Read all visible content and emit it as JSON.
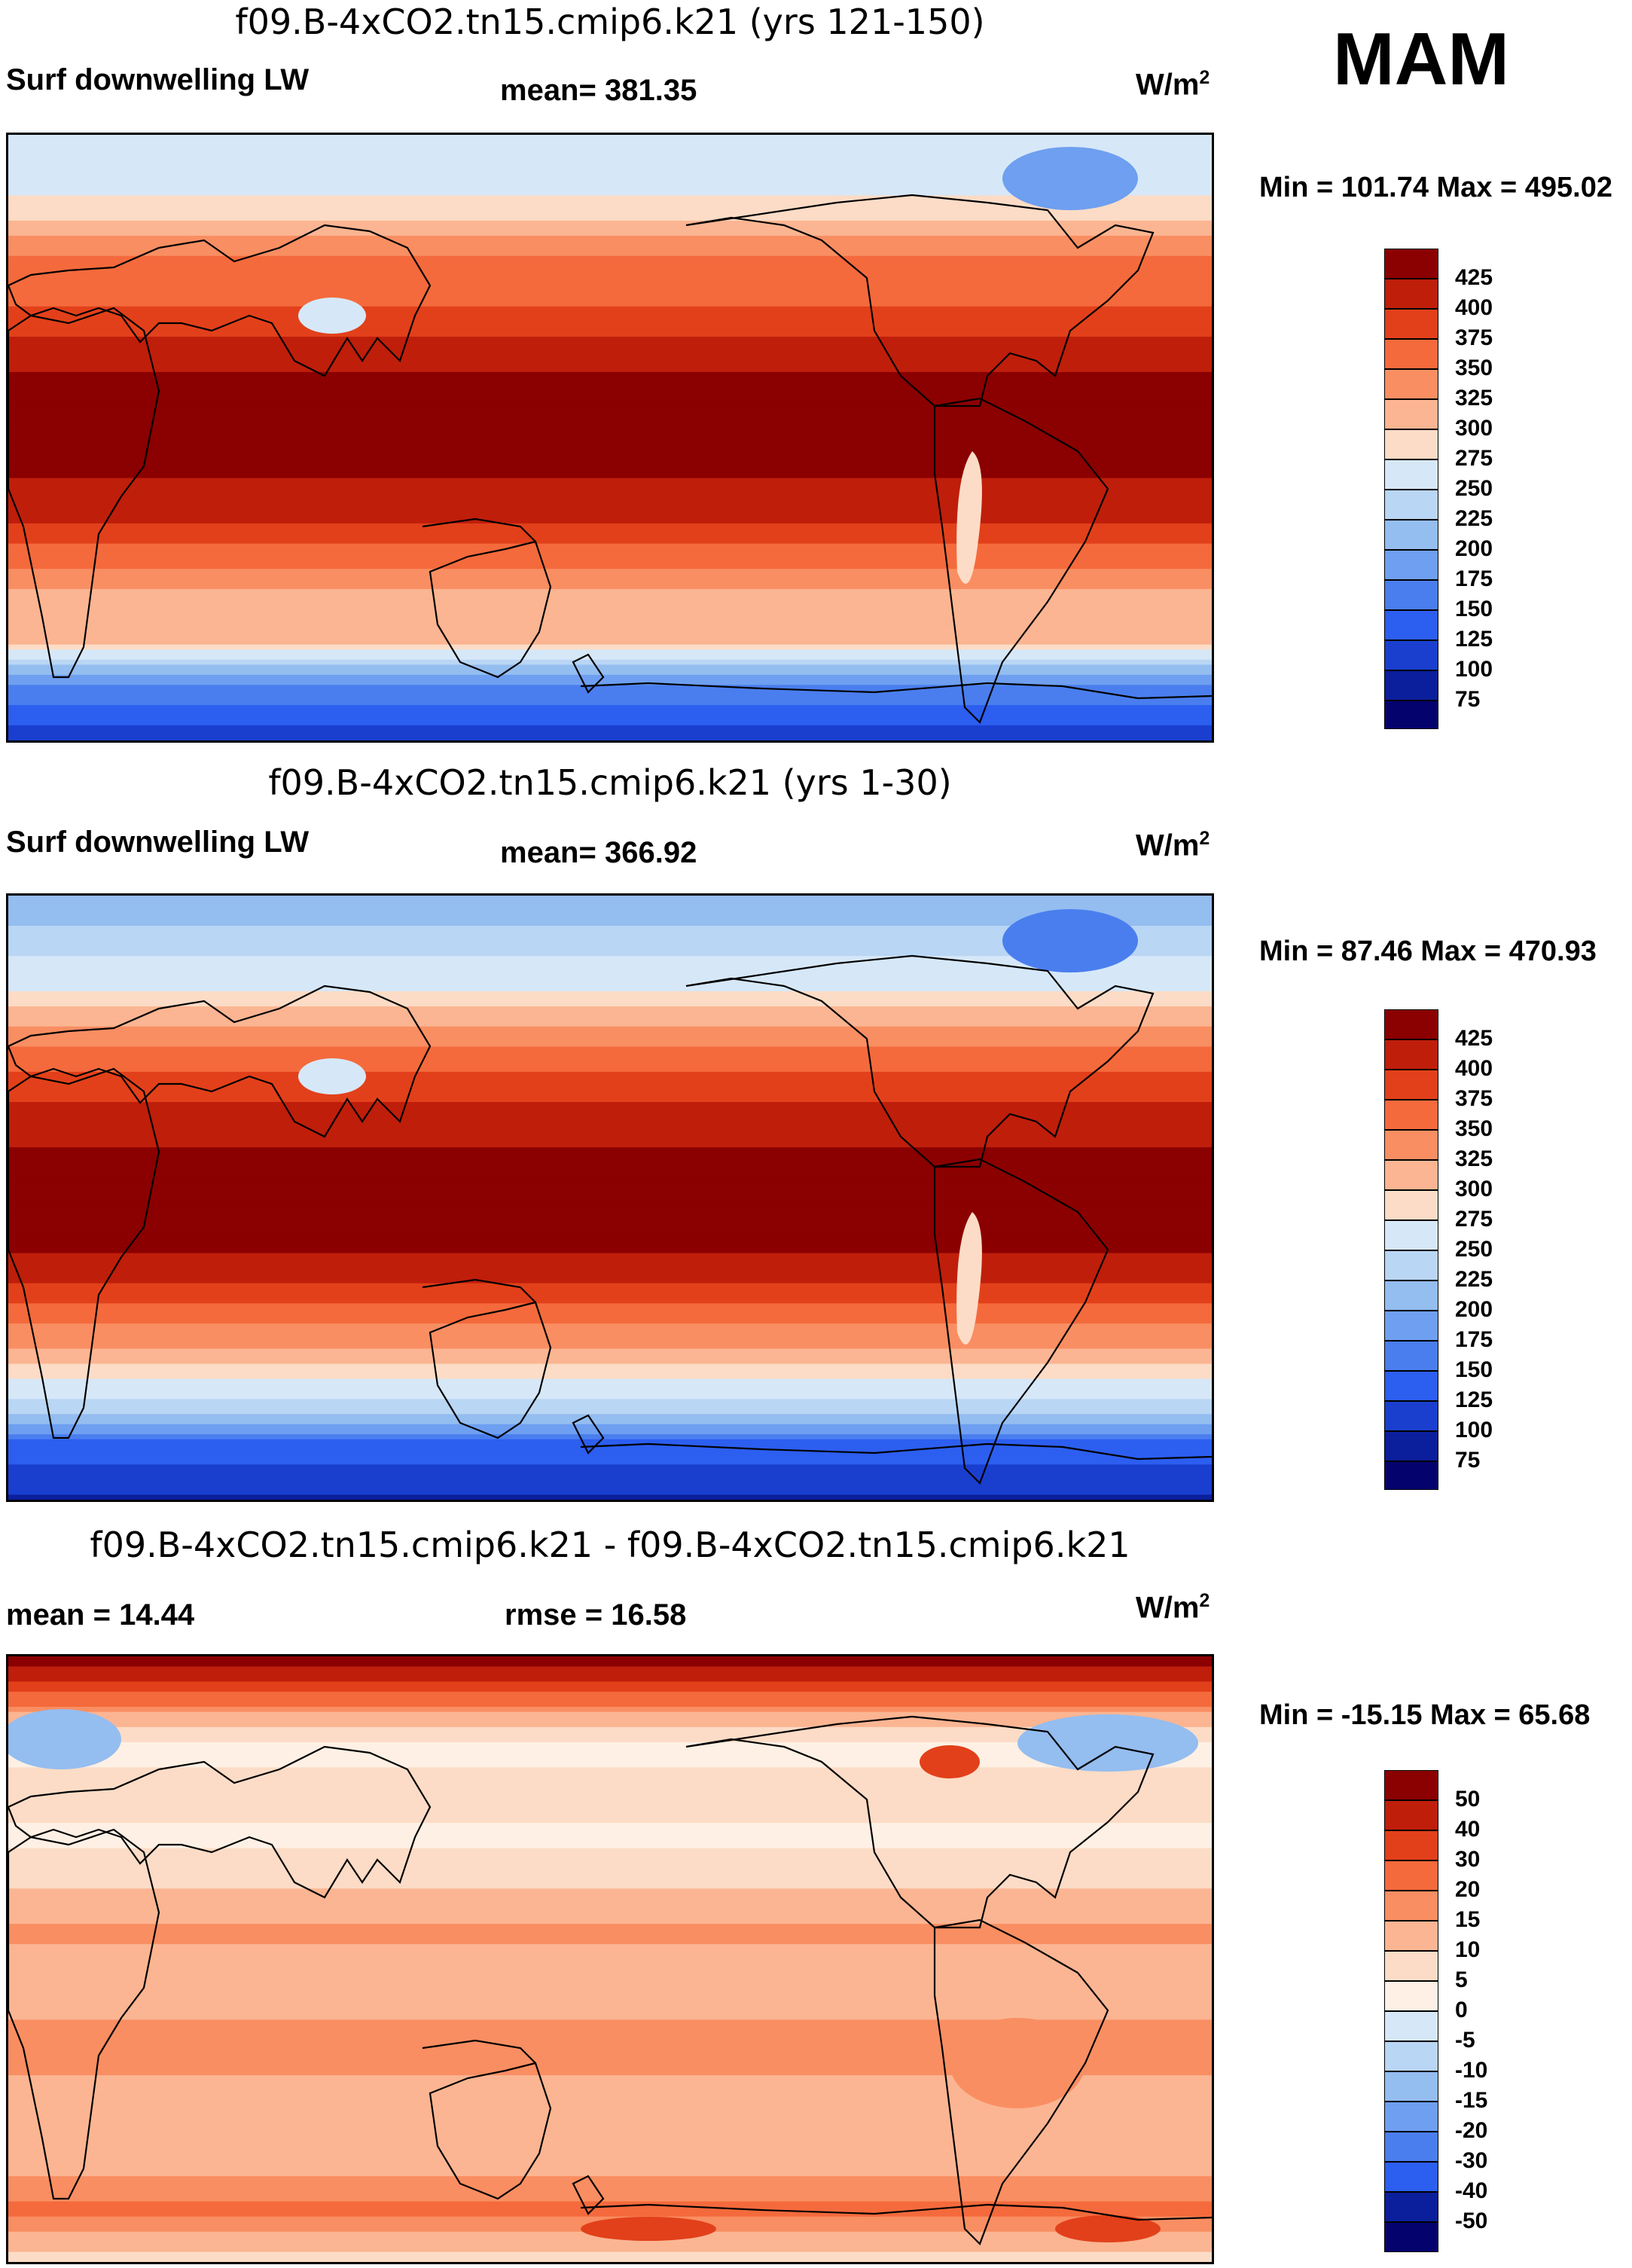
{
  "season": "MAM",
  "units_label": "W/m",
  "units_sup": "2",
  "panels": [
    {
      "title": "f09.B-4xCO2.tn15.cmip6.k21 (yrs 121-150)",
      "left_label": "Surf downwelling LW",
      "center_label": "mean= 381.35",
      "min_max": "Min = 101.74 Max = 495.02"
    },
    {
      "title": "f09.B-4xCO2.tn15.cmip6.k21 (yrs 1-30)",
      "left_label": "Surf downwelling LW",
      "center_label": "mean= 366.92",
      "min_max": "Min =  87.46 Max = 470.93"
    },
    {
      "title": "f09.B-4xCO2.tn15.cmip6.k21 - f09.B-4xCO2.tn15.cmip6.k21",
      "left_label": "mean =  14.44",
      "center_label": "rmse =  16.58",
      "min_max": "Min = -15.15 Max =  65.68"
    }
  ],
  "chart_data": [
    {
      "type": "heatmap",
      "title": "f09.B-4xCO2.tn15.cmip6.k21 (yrs 121-150)",
      "variable": "Surf downwelling LW",
      "units": "W/m2",
      "mean": 381.35,
      "min": 101.74,
      "max": 495.02,
      "levels": [
        425,
        400,
        375,
        350,
        325,
        300,
        275,
        250,
        225,
        200,
        175,
        150,
        125,
        100,
        75
      ],
      "colors": [
        "#8b0000",
        "#bf1e0b",
        "#e2401a",
        "#f46a3c",
        "#f98e62",
        "#fbb592",
        "#fcdcc6",
        "#d6e8f8",
        "#b9d6f4",
        "#94bdf0",
        "#6e9ff0",
        "#4a7eee",
        "#2c5ef0",
        "#1a3fcf",
        "#0b1f9c",
        "#04036e"
      ],
      "profile": [
        [
          0,
          260
        ],
        [
          2,
          262
        ],
        [
          4,
          266
        ],
        [
          6,
          275
        ],
        [
          8,
          292
        ],
        [
          10,
          316
        ],
        [
          12,
          347
        ],
        [
          15,
          362
        ],
        [
          17,
          372
        ],
        [
          20,
          395
        ],
        [
          25,
          432
        ],
        [
          34,
          432
        ],
        [
          40,
          400
        ],
        [
          42,
          370
        ],
        [
          44,
          352
        ],
        [
          46,
          332
        ],
        [
          48,
          300
        ],
        [
          52,
          300
        ],
        [
          56,
          180
        ],
        [
          60,
          130
        ],
        [
          62,
          110
        ]
      ]
    },
    {
      "type": "heatmap",
      "title": "f09.B-4xCO2.tn15.cmip6.k21 (yrs 1-30)",
      "variable": "Surf downwelling LW",
      "units": "W/m2",
      "mean": 366.92,
      "min": 87.46,
      "max": 470.93,
      "levels": [
        425,
        400,
        375,
        350,
        325,
        300,
        275,
        250,
        225,
        200,
        175,
        150,
        125,
        100,
        75
      ],
      "colors": [
        "#8b0000",
        "#bf1e0b",
        "#e2401a",
        "#f46a3c",
        "#f98e62",
        "#fbb592",
        "#fcdcc6",
        "#d6e8f8",
        "#b9d6f4",
        "#94bdf0",
        "#6e9ff0",
        "#4a7eee",
        "#2c5ef0",
        "#1a3fcf",
        "#0b1f9c",
        "#04036e"
      ],
      "profile": [
        [
          0,
          215
        ],
        [
          3,
          225
        ],
        [
          5,
          240
        ],
        [
          7,
          258
        ],
        [
          9,
          268
        ],
        [
          11,
          290
        ],
        [
          13,
          322
        ],
        [
          15,
          345
        ],
        [
          17,
          362
        ],
        [
          19,
          382
        ],
        [
          22,
          410
        ],
        [
          28,
          432
        ],
        [
          36,
          432
        ],
        [
          40,
          400
        ],
        [
          42,
          375
        ],
        [
          44,
          350
        ],
        [
          46,
          330
        ],
        [
          48,
          300
        ],
        [
          50,
          270
        ],
        [
          53,
          230
        ],
        [
          56,
          150
        ],
        [
          60,
          110
        ],
        [
          62,
          95
        ]
      ]
    },
    {
      "type": "heatmap",
      "title": "f09.B-4xCO2.tn15.cmip6.k21 - f09.B-4xCO2.tn15.cmip6.k21",
      "units": "W/m2",
      "mean": 14.44,
      "rmse": 16.58,
      "min": -15.15,
      "max": 65.68,
      "levels": [
        50,
        40,
        30,
        20,
        15,
        10,
        5,
        0,
        -5,
        -10,
        -15,
        -20,
        -30,
        -40,
        -50
      ],
      "colors": [
        "#8b0000",
        "#bf1e0b",
        "#e2401a",
        "#f46a3c",
        "#f98e62",
        "#fbb592",
        "#fcdcc6",
        "#fef0e4",
        "#d6e8f8",
        "#b9d6f4",
        "#94bdf0",
        "#6e9ff0",
        "#4a7eee",
        "#2c5ef0",
        "#0b1f9c",
        "#04036e"
      ],
      "profile": [
        [
          0,
          55
        ],
        [
          2,
          45
        ],
        [
          4,
          28
        ],
        [
          6,
          14
        ],
        [
          8,
          7
        ],
        [
          10,
          3
        ],
        [
          12,
          6
        ],
        [
          15,
          8
        ],
        [
          18,
          4
        ],
        [
          21,
          6
        ],
        [
          25,
          12
        ],
        [
          28,
          16
        ],
        [
          32,
          13
        ],
        [
          36,
          14
        ],
        [
          40,
          17
        ],
        [
          44,
          14
        ],
        [
          48,
          12
        ],
        [
          50,
          10
        ],
        [
          54,
          16
        ],
        [
          57,
          22
        ],
        [
          60,
          12
        ],
        [
          62,
          8
        ]
      ]
    }
  ]
}
